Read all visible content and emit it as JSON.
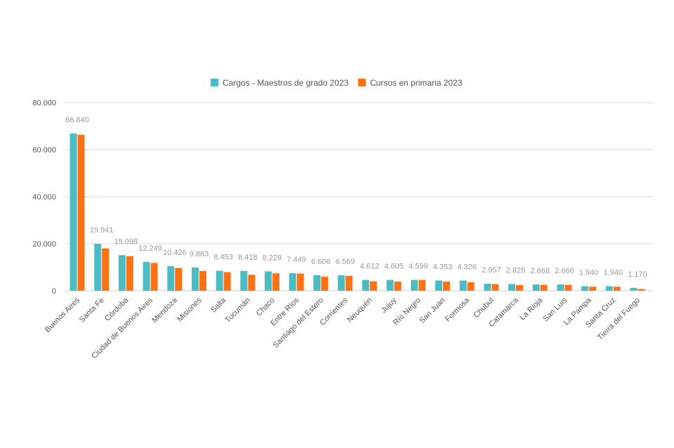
{
  "chart_data": {
    "type": "bar",
    "categories": [
      "Buenos Aires",
      "Santa Fe",
      "Córdoba",
      "Ciudad de Buenos Aires",
      "Mendoza",
      "Misiones",
      "Salta",
      "Tucumán",
      "Chaco",
      "Entre Ríos",
      "Santiago del Estero",
      "Corrientes",
      "Neuquén",
      "Jujuy",
      "Río Negro",
      "San Juan",
      "Formosa",
      "Chubut",
      "Catamarca",
      "La Rioja",
      "San Luis",
      "La Pampa",
      "Santa Cruz",
      "Tierra del Fuego"
    ],
    "series": [
      {
        "name": "Cargos - Maestros de grado 2023",
        "color": "#4bbcc4",
        "values": [
          66840,
          19941,
          15098,
          12249,
          10426,
          9883,
          8453,
          8418,
          8229,
          7449,
          6606,
          6569,
          4612,
          4605,
          4599,
          4353,
          4326,
          2957,
          2825,
          2668,
          2666,
          1940,
          1940,
          1170
        ]
      },
      {
        "name": "Cursos en primaria 2023",
        "color": "#ff7214",
        "values": [
          66300,
          18000,
          14700,
          11800,
          9700,
          8400,
          7900,
          6800,
          7400,
          7300,
          6000,
          6300,
          4000,
          3900,
          4600,
          3900,
          3600,
          2800,
          2400,
          2500,
          2500,
          1700,
          1700,
          700
        ]
      }
    ],
    "data_labels": [
      "66.840",
      "19.941",
      "15.098",
      "12.249",
      "10.426",
      "9.883",
      "8.453",
      "8.418",
      "8.229",
      "7.449",
      "6.606",
      "6.569",
      "4.612",
      "4.605",
      "4.599",
      "4.353",
      "4.326",
      "2.957",
      "2.825",
      "2.668",
      "2.666",
      "1.940",
      "1.940",
      "1.170"
    ],
    "yticks": [
      0,
      20000,
      40000,
      60000,
      80000
    ],
    "ytick_labels": [
      "0",
      "20.000",
      "40.000",
      "60.000",
      "80.000"
    ],
    "ylim": [
      0,
      80000
    ],
    "legend_position": "top-center",
    "grid": true
  }
}
